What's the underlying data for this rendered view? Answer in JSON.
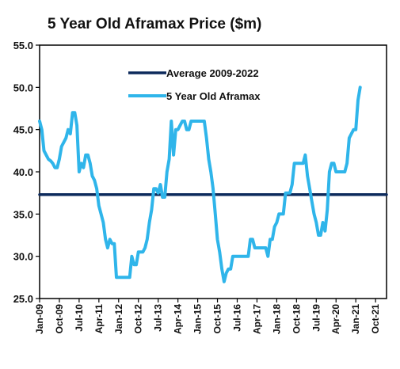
{
  "chart_data": {
    "type": "line",
    "title": "5 Year Old Aframax Price ($m)",
    "xlabel": "",
    "ylabel": "",
    "ylim": [
      25.0,
      55.0
    ],
    "y_ticks": [
      "25.0",
      "30.0",
      "35.0",
      "40.0",
      "45.0",
      "50.0",
      "55.0"
    ],
    "x_range": [
      "2009-01",
      "2022-03"
    ],
    "x_ticks": [
      {
        "label": "Jan-09",
        "date": "2009-01"
      },
      {
        "label": "Oct-09",
        "date": "2009-10"
      },
      {
        "label": "Jul-10",
        "date": "2010-07"
      },
      {
        "label": "Apr-11",
        "date": "2011-04"
      },
      {
        "label": "Jan-12",
        "date": "2012-01"
      },
      {
        "label": "Oct-12",
        "date": "2012-10"
      },
      {
        "label": "Jul-13",
        "date": "2013-07"
      },
      {
        "label": "Apr-14",
        "date": "2014-04"
      },
      {
        "label": "Jan-15",
        "date": "2015-01"
      },
      {
        "label": "Oct-15",
        "date": "2015-10"
      },
      {
        "label": "Jul-16",
        "date": "2016-07"
      },
      {
        "label": "Apr-17",
        "date": "2017-04"
      },
      {
        "label": "Jan-18",
        "date": "2018-01"
      },
      {
        "label": "Oct-18",
        "date": "2018-10"
      },
      {
        "label": "Jul-19",
        "date": "2019-07"
      },
      {
        "label": "Apr-20",
        "date": "2020-04"
      },
      {
        "label": "Jan-21",
        "date": "2021-01"
      },
      {
        "label": "Oct-21",
        "date": "2021-10"
      }
    ],
    "legend_position": "top-center",
    "grid": false,
    "series": [
      {
        "name": "Average 2009-2022",
        "color": "#0d2a5c",
        "points": [
          [
            "2009-01",
            37.3
          ],
          [
            "2022-03",
            37.3
          ]
        ]
      },
      {
        "name": "5 Year Old Aframax",
        "color": "#2fb5ea",
        "points": [
          [
            "2009-01",
            46.0
          ],
          [
            "2009-02",
            45.0
          ],
          [
            "2009-03",
            42.5
          ],
          [
            "2009-04",
            42.0
          ],
          [
            "2009-05",
            41.5
          ],
          [
            "2009-06",
            41.3
          ],
          [
            "2009-07",
            41.0
          ],
          [
            "2009-08",
            40.5
          ],
          [
            "2009-09",
            40.5
          ],
          [
            "2009-10",
            41.5
          ],
          [
            "2009-11",
            43.0
          ],
          [
            "2009-12",
            43.5
          ],
          [
            "2010-01",
            44.0
          ],
          [
            "2010-02",
            45.0
          ],
          [
            "2010-03",
            44.5
          ],
          [
            "2010-04",
            47.0
          ],
          [
            "2010-05",
            47.0
          ],
          [
            "2010-06",
            45.5
          ],
          [
            "2010-07",
            40.0
          ],
          [
            "2010-08",
            41.0
          ],
          [
            "2010-09",
            40.5
          ],
          [
            "2010-10",
            42.0
          ],
          [
            "2010-11",
            42.0
          ],
          [
            "2010-12",
            41.0
          ],
          [
            "2011-01",
            39.5
          ],
          [
            "2011-02",
            39.0
          ],
          [
            "2011-03",
            38.0
          ],
          [
            "2011-04",
            36.0
          ],
          [
            "2011-05",
            35.0
          ],
          [
            "2011-06",
            34.0
          ],
          [
            "2011-07",
            32.0
          ],
          [
            "2011-08",
            31.0
          ],
          [
            "2011-09",
            32.0
          ],
          [
            "2011-10",
            31.5
          ],
          [
            "2011-11",
            31.5
          ],
          [
            "2011-12",
            27.5
          ],
          [
            "2012-01",
            27.5
          ],
          [
            "2012-02",
            27.5
          ],
          [
            "2012-03",
            27.5
          ],
          [
            "2012-04",
            27.5
          ],
          [
            "2012-05",
            27.5
          ],
          [
            "2012-06",
            27.5
          ],
          [
            "2012-07",
            30.0
          ],
          [
            "2012-08",
            29.0
          ],
          [
            "2012-09",
            29.0
          ],
          [
            "2012-10",
            30.5
          ],
          [
            "2012-11",
            30.5
          ],
          [
            "2012-12",
            30.5
          ],
          [
            "2013-01",
            31.0
          ],
          [
            "2013-02",
            32.0
          ],
          [
            "2013-03",
            34.0
          ],
          [
            "2013-04",
            35.5
          ],
          [
            "2013-05",
            38.0
          ],
          [
            "2013-06",
            38.0
          ],
          [
            "2013-07",
            37.5
          ],
          [
            "2013-08",
            38.5
          ],
          [
            "2013-09",
            37.0
          ],
          [
            "2013-10",
            37.0
          ],
          [
            "2013-11",
            40.0
          ],
          [
            "2013-12",
            41.5
          ],
          [
            "2014-01",
            46.0
          ],
          [
            "2014-02",
            42.0
          ],
          [
            "2014-03",
            45.0
          ],
          [
            "2014-04",
            45.0
          ],
          [
            "2014-05",
            45.5
          ],
          [
            "2014-06",
            46.0
          ],
          [
            "2014-07",
            46.0
          ],
          [
            "2014-08",
            45.0
          ],
          [
            "2014-09",
            45.0
          ],
          [
            "2014-10",
            46.0
          ],
          [
            "2014-11",
            46.0
          ],
          [
            "2014-12",
            46.0
          ],
          [
            "2015-01",
            46.0
          ],
          [
            "2015-02",
            46.0
          ],
          [
            "2015-03",
            46.0
          ],
          [
            "2015-04",
            46.0
          ],
          [
            "2015-05",
            44.0
          ],
          [
            "2015-06",
            41.5
          ],
          [
            "2015-07",
            40.0
          ],
          [
            "2015-08",
            38.0
          ],
          [
            "2015-09",
            35.0
          ],
          [
            "2015-10",
            32.0
          ],
          [
            "2015-11",
            30.5
          ],
          [
            "2015-12",
            28.5
          ],
          [
            "2016-01",
            27.0
          ],
          [
            "2016-02",
            28.0
          ],
          [
            "2016-03",
            28.5
          ],
          [
            "2016-04",
            28.5
          ],
          [
            "2016-05",
            30.0
          ],
          [
            "2016-06",
            30.0
          ],
          [
            "2016-07",
            30.0
          ],
          [
            "2016-08",
            30.0
          ],
          [
            "2016-09",
            30.0
          ],
          [
            "2016-10",
            30.0
          ],
          [
            "2016-11",
            30.0
          ],
          [
            "2016-12",
            30.0
          ],
          [
            "2017-01",
            32.0
          ],
          [
            "2017-02",
            32.0
          ],
          [
            "2017-03",
            31.0
          ],
          [
            "2017-04",
            31.0
          ],
          [
            "2017-05",
            31.0
          ],
          [
            "2017-06",
            31.0
          ],
          [
            "2017-07",
            31.0
          ],
          [
            "2017-08",
            31.0
          ],
          [
            "2017-09",
            30.0
          ],
          [
            "2017-10",
            32.0
          ],
          [
            "2017-11",
            32.0
          ],
          [
            "2017-12",
            33.5
          ],
          [
            "2018-01",
            34.0
          ],
          [
            "2018-02",
            35.0
          ],
          [
            "2018-03",
            35.0
          ],
          [
            "2018-04",
            35.0
          ],
          [
            "2018-05",
            37.5
          ],
          [
            "2018-06",
            37.5
          ],
          [
            "2018-07",
            37.5
          ],
          [
            "2018-08",
            38.5
          ],
          [
            "2018-09",
            41.0
          ],
          [
            "2018-10",
            41.0
          ],
          [
            "2018-11",
            41.0
          ],
          [
            "2018-12",
            41.0
          ],
          [
            "2019-01",
            41.0
          ],
          [
            "2019-02",
            42.0
          ],
          [
            "2019-03",
            39.5
          ],
          [
            "2019-04",
            38.0
          ],
          [
            "2019-05",
            36.5
          ],
          [
            "2019-06",
            35.0
          ],
          [
            "2019-07",
            34.0
          ],
          [
            "2019-08",
            32.5
          ],
          [
            "2019-09",
            32.5
          ],
          [
            "2019-10",
            34.0
          ],
          [
            "2019-11",
            33.0
          ],
          [
            "2019-12",
            35.5
          ],
          [
            "2020-01",
            40.0
          ],
          [
            "2020-02",
            41.0
          ],
          [
            "2020-03",
            41.0
          ],
          [
            "2020-04",
            40.0
          ],
          [
            "2020-05",
            40.0
          ],
          [
            "2020-06",
            40.0
          ],
          [
            "2020-07",
            40.0
          ],
          [
            "2020-08",
            40.0
          ],
          [
            "2020-09",
            41.0
          ],
          [
            "2020-10",
            44.0
          ],
          [
            "2020-11",
            44.5
          ],
          [
            "2020-12",
            45.0
          ],
          [
            "2021-01",
            45.0
          ],
          [
            "2021-02",
            48.5
          ],
          [
            "2021-03",
            50.0
          ]
        ]
      }
    ]
  }
}
